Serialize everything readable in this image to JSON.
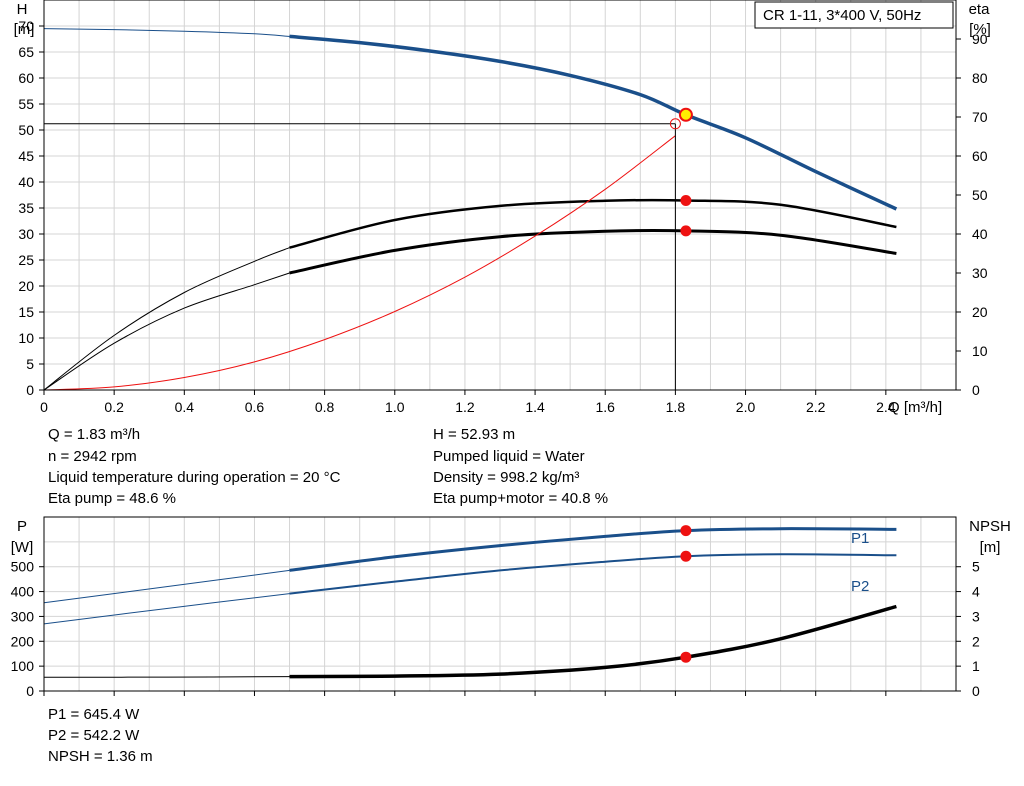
{
  "title": "CR 1-11, 3*400 V, 50Hz",
  "colors": {
    "blue": "#1a4f8a",
    "black": "#000000",
    "red": "#ee1111",
    "grid": "#d4d4d4",
    "duty_marker": "#ffee00"
  },
  "chart_data": [
    {
      "type": "line",
      "title": "CR 1-11, 3*400 V, 50Hz",
      "xlabel": "Q [m³/h]",
      "ylabel_left": [
        "H",
        "[m]"
      ],
      "ylabel_right": [
        "eta",
        "[%]"
      ],
      "xlim": [
        0,
        2.6
      ],
      "ylim_left": [
        0,
        75
      ],
      "ylim_right": [
        0,
        100
      ],
      "x_ticks": [
        "0",
        "0.2",
        "0.4",
        "0.6",
        "0.8",
        "1.0",
        "1.2",
        "1.4",
        "1.6",
        "1.8",
        "2.0",
        "2.2",
        "2.4"
      ],
      "y_ticks_left": [
        "0",
        "5",
        "10",
        "15",
        "20",
        "25",
        "30",
        "35",
        "40",
        "45",
        "50",
        "55",
        "60",
        "65",
        "70"
      ],
      "y_ticks_right": [
        "0",
        "10",
        "20",
        "30",
        "40",
        "50",
        "60",
        "70",
        "80",
        "90"
      ],
      "grid": true,
      "series": [
        {
          "axis": "left",
          "color": "blue",
          "x": [
            0,
            0.2,
            0.4,
            0.6,
            0.7
          ],
          "y": [
            69.5,
            69.3,
            69.0,
            68.5,
            68.0
          ]
        },
        {
          "axis": "left",
          "color": "blue",
          "x": [
            0.7,
            0.9,
            1.1,
            1.3,
            1.5,
            1.7,
            1.83,
            2.0,
            2.2,
            2.43
          ],
          "y": [
            68.0,
            66.8,
            65.2,
            63.2,
            60.5,
            56.8,
            52.93,
            48.5,
            42.0,
            34.8
          ]
        },
        {
          "axis": "right",
          "color": "black",
          "x": [
            0,
            0.2,
            0.4,
            0.6,
            0.7
          ],
          "y": [
            0,
            14,
            25,
            33,
            36.5
          ]
        },
        {
          "axis": "right",
          "color": "black",
          "x": [
            0.7,
            1.0,
            1.3,
            1.6,
            1.83,
            2.1,
            2.43
          ],
          "y": [
            36.5,
            43.6,
            47.2,
            48.5,
            48.6,
            47.5,
            41.8
          ]
        },
        {
          "axis": "right",
          "color": "black",
          "x": [
            0,
            0.2,
            0.4,
            0.6,
            0.7
          ],
          "y": [
            0,
            12,
            21,
            27,
            30
          ]
        },
        {
          "axis": "right",
          "color": "black",
          "x": [
            0.7,
            1.0,
            1.3,
            1.6,
            1.83,
            2.1,
            2.43
          ],
          "y": [
            30,
            35.8,
            39.3,
            40.7,
            40.8,
            39.7,
            35.0
          ]
        },
        {
          "axis": "left",
          "color": "red",
          "x": [
            0,
            0.2,
            0.4,
            0.6,
            0.8,
            1.0,
            1.2,
            1.4,
            1.6,
            1.8
          ],
          "y": [
            0,
            0.6,
            2.4,
            5.4,
            9.7,
            15.1,
            21.7,
            29.6,
            38.6,
            48.9
          ]
        }
      ],
      "operating_point": {
        "Q": 1.83,
        "H": 52.93,
        "eta_pump": 48.6,
        "eta_pump_motor": 40.8,
        "H_line": 51.2,
        "Q_line": 1.8
      }
    },
    {
      "type": "line",
      "xlim": [
        0,
        2.6
      ],
      "ylabel_left": [
        "P",
        "[W]"
      ],
      "ylabel_right": [
        "NPSH",
        "[m]"
      ],
      "ylim_left": [
        0,
        700
      ],
      "ylim_right": [
        0,
        7
      ],
      "y_ticks_left": [
        "0",
        "100",
        "200",
        "300",
        "400",
        "500"
      ],
      "y_ticks_right": [
        "0",
        "1",
        "2",
        "3",
        "4",
        "5"
      ],
      "grid": true,
      "series": [
        {
          "name": "P1",
          "axis": "left",
          "color": "blue",
          "x": [
            0,
            0.35,
            0.7
          ],
          "y": [
            355,
            420,
            485
          ]
        },
        {
          "name": "P1",
          "axis": "left",
          "color": "blue",
          "x": [
            0.7,
            1.0,
            1.3,
            1.6,
            1.83,
            2.1,
            2.43
          ],
          "y": [
            485,
            540,
            585,
            622,
            645.4,
            653,
            650
          ]
        },
        {
          "name": "P2",
          "axis": "left",
          "color": "blue",
          "x": [
            0,
            0.35,
            0.7
          ],
          "y": [
            270,
            332,
            392
          ]
        },
        {
          "name": "P2",
          "axis": "left",
          "color": "blue",
          "x": [
            0.7,
            1.0,
            1.3,
            1.6,
            1.83,
            2.1,
            2.43
          ],
          "y": [
            392,
            440,
            485,
            520,
            542.2,
            550,
            546
          ]
        },
        {
          "axis": "right",
          "color": "black",
          "x": [
            0,
            0.35,
            0.7
          ],
          "y": [
            0.55,
            0.56,
            0.58
          ]
        },
        {
          "axis": "right",
          "color": "black",
          "x": [
            0.7,
            1.0,
            1.3,
            1.6,
            1.83,
            2.1,
            2.43
          ],
          "y": [
            0.58,
            0.6,
            0.68,
            0.95,
            1.36,
            2.1,
            3.4
          ]
        }
      ],
      "series_labels": {
        "P1": "P1",
        "P2": "P2"
      }
    }
  ],
  "info_top": {
    "left": [
      "Q = 1.83 m³/h",
      "n = 2942 rpm",
      "Liquid temperature during operation = 20 °C",
      "Eta pump = 48.6 %"
    ],
    "right": [
      "H = 52.93 m",
      "Pumped liquid = Water",
      "Density = 998.2 kg/m³",
      "Eta pump+motor = 40.8 %"
    ]
  },
  "info_bottom": [
    "P1 = 645.4 W",
    "P2 = 542.2 W",
    "NPSH = 1.36 m"
  ]
}
